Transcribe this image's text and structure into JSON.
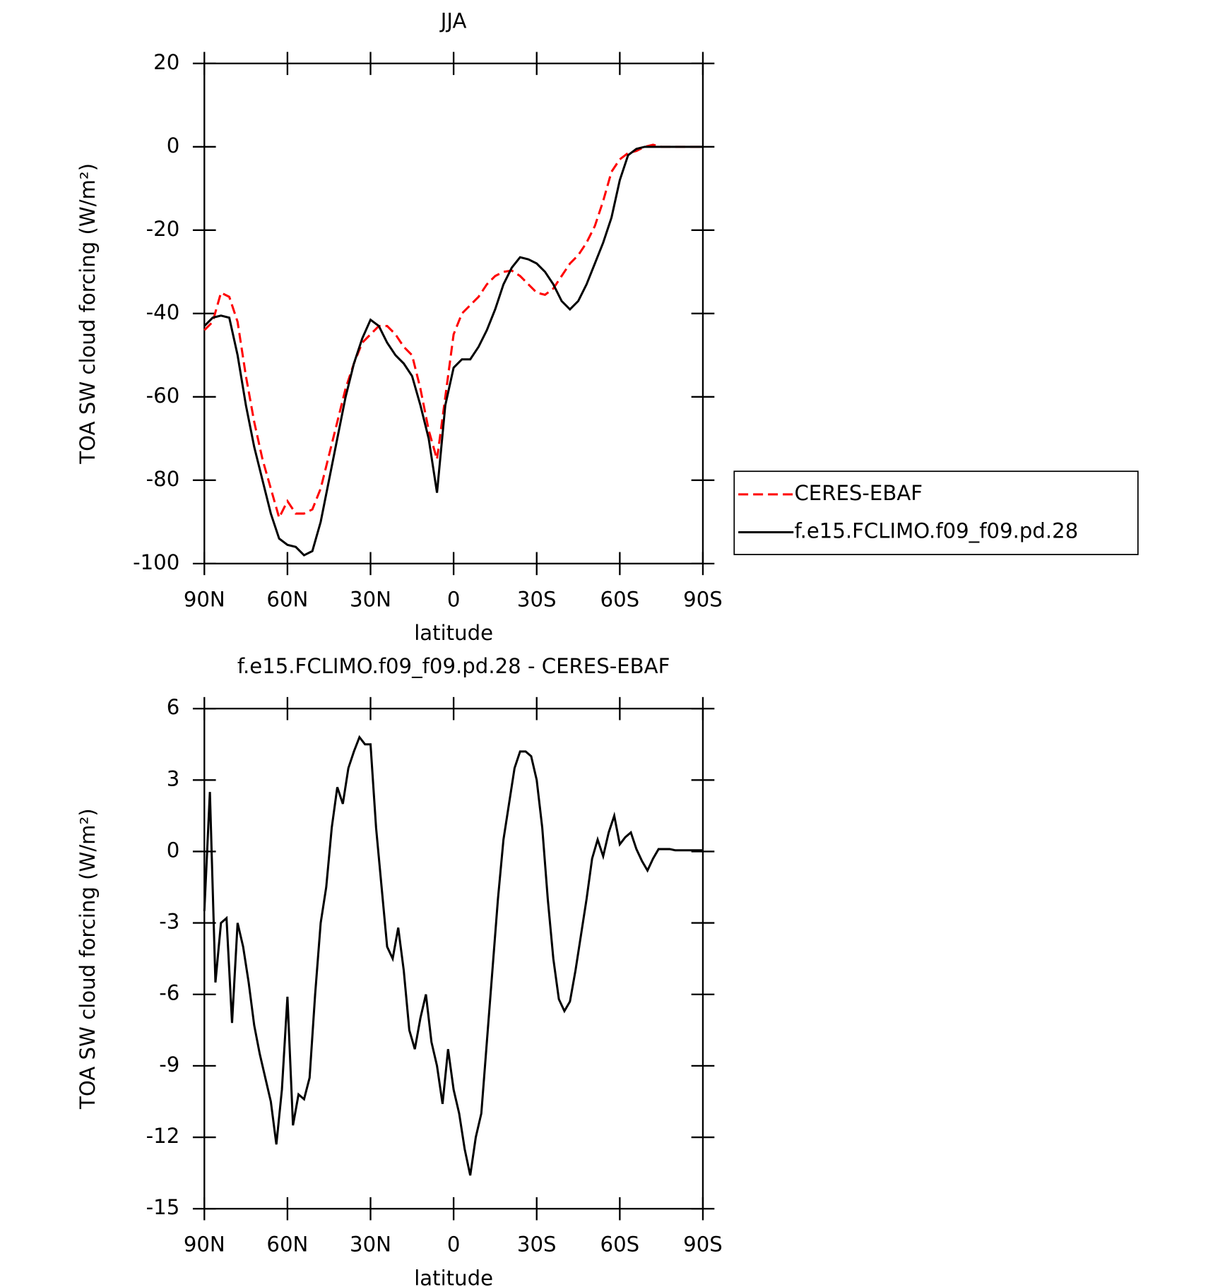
{
  "chart_data": [
    {
      "type": "line",
      "title": "JJA",
      "xlabel": "latitude",
      "ylabel": "TOA SW cloud forcing (W/m²)",
      "x": [
        90,
        87,
        84,
        81,
        78,
        75,
        72,
        69,
        66,
        63,
        60,
        57,
        54,
        51,
        48,
        45,
        42,
        39,
        36,
        33,
        30,
        27,
        24,
        21,
        18,
        15,
        12,
        9,
        6,
        3,
        0,
        -3,
        -6,
        -9,
        -12,
        -15,
        -18,
        -21,
        -24,
        -27,
        -30,
        -33,
        -36,
        -39,
        -42,
        -45,
        -48,
        -51,
        -54,
        -57,
        -60,
        -63,
        -66,
        -69,
        -72,
        -75,
        -78,
        -81,
        -84,
        -87,
        -90
      ],
      "series": [
        {
          "name": "CERES-EBAF",
          "color": "#ff0000",
          "dash": true,
          "values": [
            -44,
            -42,
            -35,
            -36,
            -42,
            -55,
            -66,
            -75,
            -82,
            -89,
            -85,
            -88,
            -88,
            -87,
            -82,
            -74,
            -66,
            -58,
            -52,
            -47,
            -45,
            -43,
            -43,
            -45,
            -48,
            -50,
            -58,
            -68,
            -75,
            -60,
            -45,
            -40,
            -38,
            -36,
            -33,
            -31,
            -30,
            -29.7,
            -31,
            -33,
            -35,
            -35.5,
            -34,
            -31,
            -28,
            -26,
            -23,
            -19,
            -13,
            -6,
            -3,
            -1.5,
            -1,
            0,
            0.5,
            0,
            0,
            0,
            0,
            0,
            0
          ]
        },
        {
          "name": "f.e15.FCLIMO.f09_f09.pd.28",
          "color": "#000000",
          "dash": false,
          "values": [
            -43,
            -41,
            -40.5,
            -41,
            -50,
            -62,
            -72,
            -80,
            -88,
            -94,
            -95.5,
            -96,
            -98,
            -97,
            -90,
            -80,
            -70,
            -60,
            -52,
            -46,
            -41.5,
            -43,
            -47,
            -50,
            -52,
            -55,
            -62,
            -70,
            -83,
            -62,
            -53,
            -51,
            -51,
            -48,
            -44,
            -39,
            -33,
            -29,
            -26.5,
            -27,
            -28,
            -30,
            -33,
            -37,
            -39,
            -37,
            -33,
            -28,
            -23,
            -17,
            -8,
            -2,
            -0.5,
            0,
            0,
            0,
            0,
            0,
            0,
            0,
            0
          ]
        }
      ],
      "xlim": [
        90,
        -90
      ],
      "ylim": [
        -100,
        20
      ],
      "xticks": [
        {
          "value": 90,
          "label": "90N"
        },
        {
          "value": 60,
          "label": "60N"
        },
        {
          "value": 30,
          "label": "30N"
        },
        0,
        {
          "value": -30,
          "label": "30S"
        },
        {
          "value": -60,
          "label": "60S"
        },
        {
          "value": -90,
          "label": "90S"
        }
      ],
      "yticks": [
        20,
        0,
        -20,
        -40,
        -60,
        -80,
        -100
      ],
      "legend": "right"
    },
    {
      "type": "line",
      "title": "f.e15.FCLIMO.f09_f09.pd.28 - CERES-EBAF",
      "xlabel": "latitude",
      "ylabel": "TOA SW cloud forcing (W/m²)",
      "x": [
        90,
        88,
        86,
        84,
        82,
        80,
        78,
        76,
        74,
        72,
        70,
        68,
        66,
        64,
        62,
        60,
        58,
        56,
        54,
        52,
        50,
        48,
        46,
        44,
        42,
        40,
        38,
        36,
        34,
        32,
        30,
        28,
        26,
        24,
        22,
        20,
        18,
        16,
        14,
        12,
        10,
        8,
        6,
        4,
        2,
        0,
        -2,
        -4,
        -6,
        -8,
        -10,
        -12,
        -14,
        -16,
        -18,
        -20,
        -22,
        -24,
        -26,
        -28,
        -30,
        -32,
        -34,
        -36,
        -38,
        -40,
        -42,
        -44,
        -46,
        -48,
        -50,
        -52,
        -54,
        -56,
        -58,
        -60,
        -62,
        -64,
        -66,
        -68,
        -70,
        -72,
        -74,
        -76,
        -78,
        -80,
        -82,
        -84,
        -86,
        -88,
        -90
      ],
      "series": [
        {
          "color": "#000000",
          "values": [
            -2.5,
            2.5,
            -5.5,
            -3,
            -2.8,
            -7.2,
            -3,
            -4,
            -5.5,
            -7.3,
            -8.5,
            -9.5,
            -10.5,
            -12.3,
            -10,
            -6.1,
            -11.5,
            -10.2,
            -10.4,
            -9.5,
            -6,
            -3,
            -1.5,
            1,
            2.7,
            2,
            3.5,
            4.2,
            4.8,
            4.5,
            4.5,
            1,
            -1.5,
            -4,
            -4.5,
            -3.2,
            -5,
            -7.5,
            -8.3,
            -7,
            -6,
            -8,
            -9,
            -10.6,
            -8.3,
            -10,
            -11,
            -12.5,
            -13.6,
            -12,
            -11,
            -8,
            -5,
            -2,
            0.5,
            2,
            3.5,
            4.2,
            4.2,
            4,
            3,
            1,
            -2,
            -4.5,
            -6.2,
            -6.7,
            -6.3,
            -5,
            -3.5,
            -2,
            -0.3,
            0.5,
            -0.2,
            0.8,
            1.5,
            0.3,
            0.6,
            0.8,
            0.1,
            -0.4,
            -0.8,
            -0.3,
            0.1,
            0.1,
            0.1,
            0.05,
            0.05,
            0.05,
            0.05,
            0.05,
            0.05
          ]
        }
      ],
      "xlim": [
        90,
        -90
      ],
      "ylim": [
        -15,
        6
      ],
      "xticks": [
        {
          "value": 90,
          "label": "90N"
        },
        {
          "value": 60,
          "label": "60N"
        },
        {
          "value": 30,
          "label": "30N"
        },
        0,
        {
          "value": -30,
          "label": "30S"
        },
        {
          "value": -60,
          "label": "60S"
        },
        {
          "value": -90,
          "label": "90S"
        }
      ],
      "yticks": [
        6,
        3,
        0,
        -3,
        -6,
        -9,
        -12,
        -15
      ]
    }
  ]
}
